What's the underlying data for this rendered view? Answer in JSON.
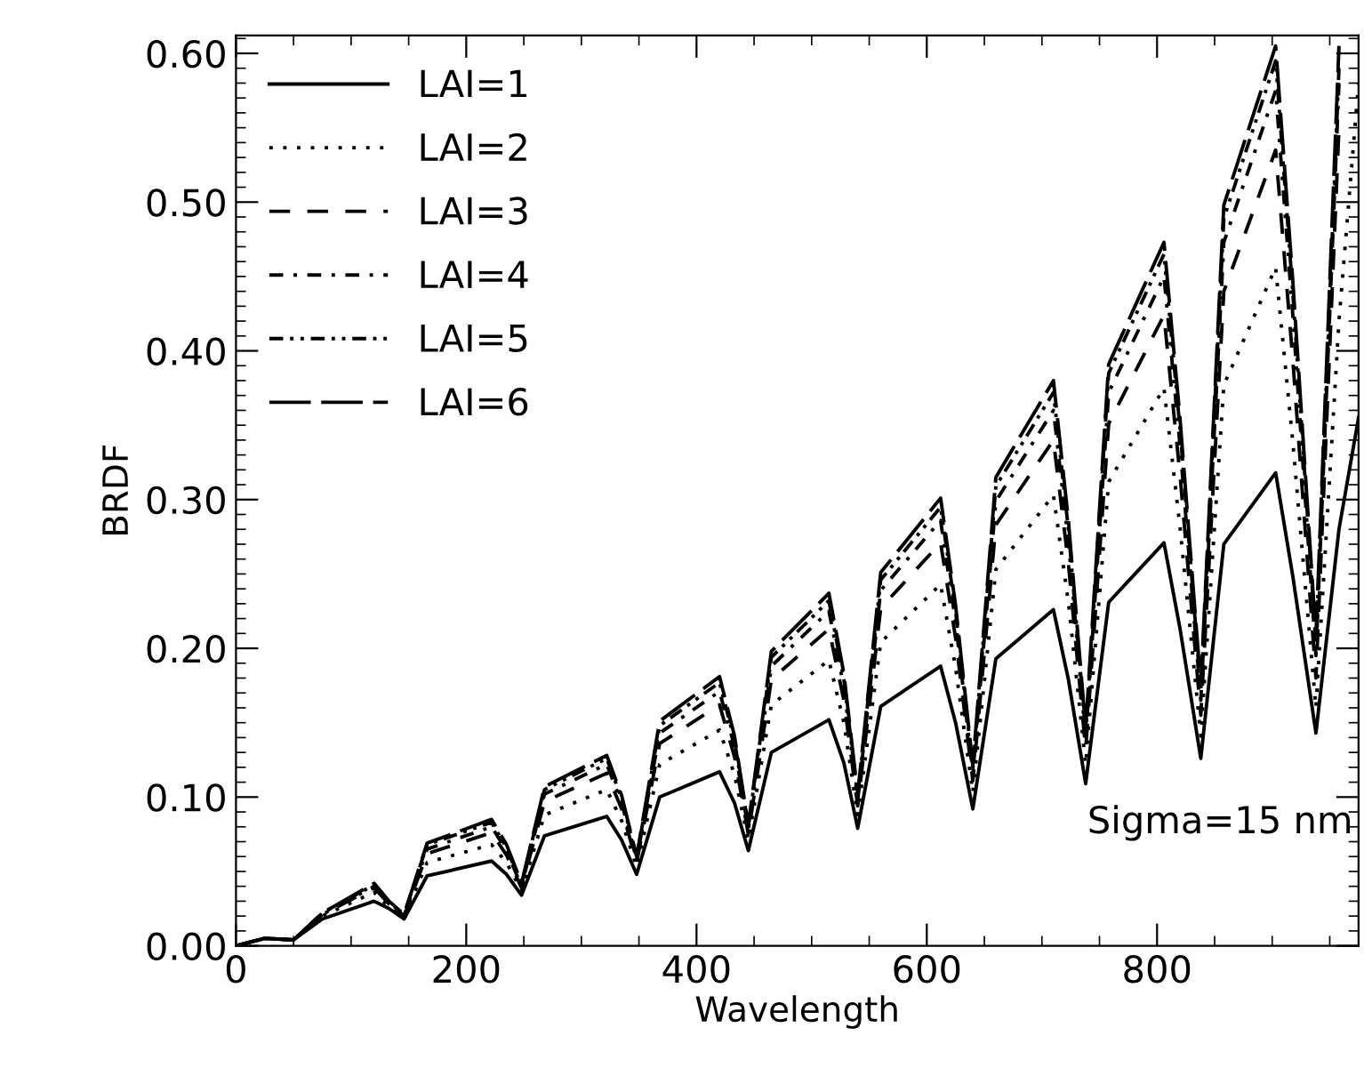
{
  "chart_data": {
    "type": "line",
    "xlabel": "Wavelength",
    "ylabel": "BRDF",
    "x": [
      0,
      25,
      50,
      75,
      120,
      133,
      146,
      166,
      222,
      235,
      248,
      268,
      322,
      335,
      348,
      368,
      420,
      433,
      445,
      465,
      515,
      528,
      540,
      560,
      612,
      625,
      640,
      660,
      710,
      723,
      738,
      758,
      806,
      820,
      838,
      858,
      903,
      918,
      938,
      958,
      975
    ],
    "series": [
      {
        "name": "LAI=1",
        "color": "#000000",
        "line_style": "solid",
        "values": [
          0,
          0.005,
          0.004,
          0.018,
          0.03,
          0.025,
          0.018,
          0.047,
          0.057,
          0.048,
          0.034,
          0.074,
          0.087,
          0.071,
          0.048,
          0.1,
          0.117,
          0.096,
          0.064,
          0.13,
          0.152,
          0.123,
          0.079,
          0.161,
          0.188,
          0.15,
          0.092,
          0.193,
          0.226,
          0.179,
          0.109,
          0.231,
          0.271,
          0.213,
          0.126,
          0.27,
          0.318,
          0.248,
          0.143,
          0.28,
          0.355
        ]
      },
      {
        "name": "LAI=2",
        "color": "#000000",
        "line_style": "dotted",
        "values": [
          0,
          0.005,
          0.004,
          0.02,
          0.036,
          0.026,
          0.019,
          0.056,
          0.068,
          0.056,
          0.037,
          0.088,
          0.105,
          0.084,
          0.053,
          0.122,
          0.145,
          0.115,
          0.071,
          0.162,
          0.192,
          0.15,
          0.088,
          0.204,
          0.243,
          0.187,
          0.103,
          0.253,
          0.303,
          0.231,
          0.122,
          0.312,
          0.375,
          0.281,
          0.141,
          0.377,
          0.456,
          0.338,
          0.16,
          0.42,
          0.58
        ]
      },
      {
        "name": "LAI=3",
        "color": "#000000",
        "line_style": "dashed",
        "values": [
          0,
          0.005,
          0.004,
          0.021,
          0.039,
          0.028,
          0.02,
          0.062,
          0.076,
          0.061,
          0.039,
          0.097,
          0.116,
          0.092,
          0.056,
          0.136,
          0.162,
          0.127,
          0.075,
          0.179,
          0.213,
          0.165,
          0.094,
          0.227,
          0.271,
          0.207,
          0.111,
          0.283,
          0.34,
          0.257,
          0.132,
          0.351,
          0.424,
          0.316,
          0.155,
          0.44,
          0.535,
          0.393,
          0.18,
          0.55,
          null
        ]
      },
      {
        "name": "LAI=4",
        "color": "#000000",
        "line_style": "dashdot",
        "values": [
          0,
          0.005,
          0.004,
          0.021,
          0.04,
          0.028,
          0.02,
          0.065,
          0.08,
          0.064,
          0.04,
          0.102,
          0.122,
          0.096,
          0.058,
          0.143,
          0.171,
          0.134,
          0.078,
          0.188,
          0.225,
          0.174,
          0.098,
          0.239,
          0.286,
          0.218,
          0.116,
          0.299,
          0.36,
          0.272,
          0.139,
          0.372,
          0.45,
          0.336,
          0.165,
          0.473,
          0.575,
          0.423,
          0.195,
          0.58,
          null
        ]
      },
      {
        "name": "LAI=5",
        "color": "#000000",
        "line_style": "dashdotdot",
        "values": [
          0,
          0.005,
          0.004,
          0.022,
          0.041,
          0.029,
          0.021,
          0.068,
          0.083,
          0.066,
          0.041,
          0.105,
          0.126,
          0.099,
          0.059,
          0.148,
          0.177,
          0.138,
          0.08,
          0.194,
          0.232,
          0.179,
          0.1,
          0.246,
          0.295,
          0.225,
          0.119,
          0.309,
          0.372,
          0.28,
          0.143,
          0.385,
          0.465,
          0.347,
          0.171,
          0.489,
          0.595,
          0.438,
          0.203,
          0.59,
          null
        ]
      },
      {
        "name": "LAI=6",
        "color": "#000000",
        "line_style": "longdash",
        "values": [
          0,
          0.005,
          0.004,
          0.022,
          0.042,
          0.03,
          0.021,
          0.069,
          0.085,
          0.068,
          0.042,
          0.107,
          0.128,
          0.101,
          0.06,
          0.151,
          0.181,
          0.141,
          0.081,
          0.198,
          0.237,
          0.183,
          0.102,
          0.251,
          0.301,
          0.229,
          0.121,
          0.315,
          0.38,
          0.286,
          0.146,
          0.391,
          0.473,
          0.354,
          0.175,
          0.498,
          0.605,
          0.446,
          0.208,
          0.605,
          null
        ]
      }
    ],
    "xlim": [
      0,
      975
    ],
    "ylim": [
      0,
      0.612
    ],
    "xticks": [
      0,
      200,
      400,
      600,
      800
    ],
    "yticks": [
      {
        "value": 0,
        "label": "0.00"
      },
      {
        "value": 0.1,
        "label": "0.10"
      },
      {
        "value": 0.2,
        "label": "0.20"
      },
      {
        "value": 0.3,
        "label": "0.30"
      },
      {
        "value": 0.4,
        "label": "0.40"
      },
      {
        "value": 0.5,
        "label": "0.50"
      },
      {
        "value": 0.6,
        "label": "0.60"
      }
    ],
    "annotations": [
      "Sigma=15 nm"
    ],
    "legend": "top left",
    "grid": false
  }
}
